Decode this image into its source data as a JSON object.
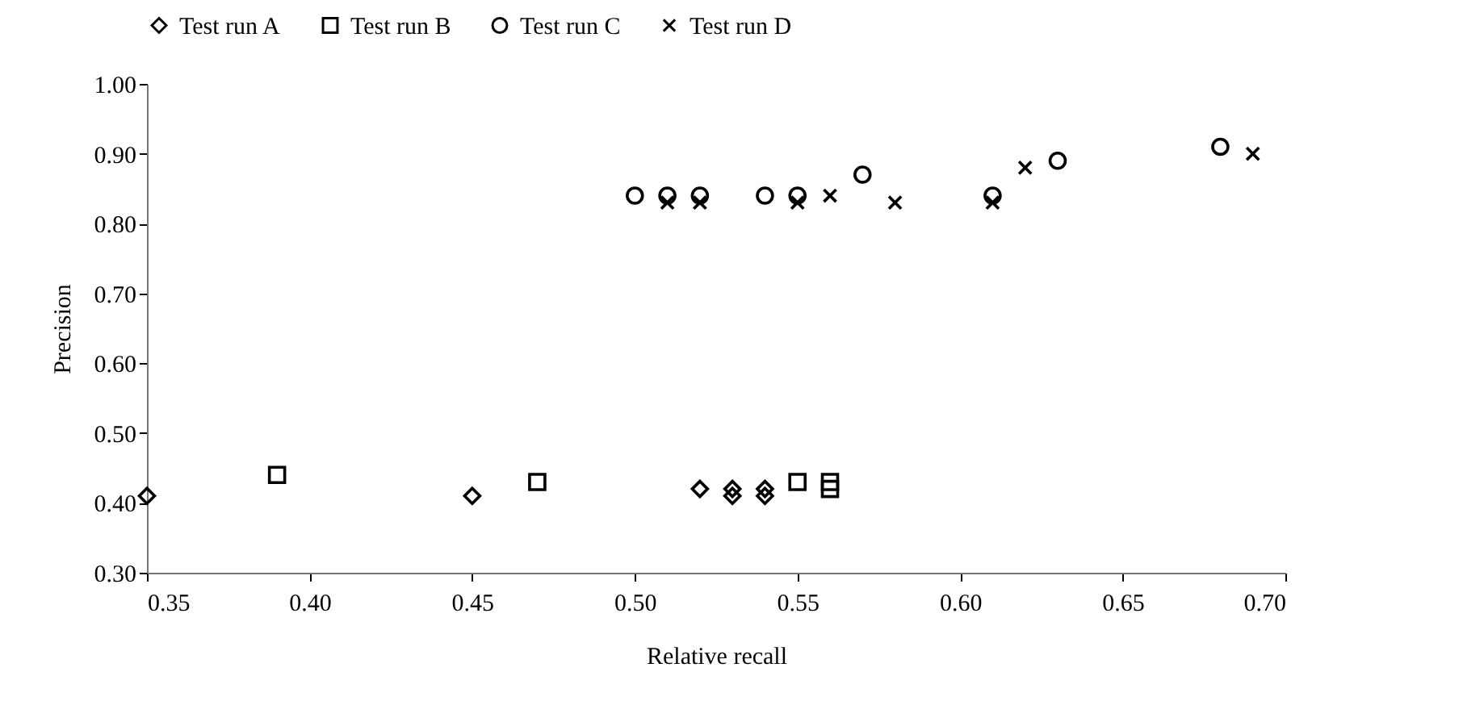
{
  "chart_data": {
    "type": "scatter",
    "xlabel": "Relative recall",
    "ylabel": "Precision",
    "xlim": [
      0.35,
      0.7
    ],
    "xticks": [
      {
        "value": 0.35,
        "label": "0.35"
      },
      {
        "value": 0.4,
        "label": "0.40"
      },
      {
        "value": 0.45,
        "label": "0.45"
      },
      {
        "value": 0.5,
        "label": "0.50"
      },
      {
        "value": 0.55,
        "label": "0.55"
      },
      {
        "value": 0.6,
        "label": "0.60"
      },
      {
        "value": 0.65,
        "label": "0.65"
      },
      {
        "value": 0.7,
        "label": "0.70"
      }
    ],
    "ylim": [
      0.3,
      1.0
    ],
    "yticks": [
      {
        "value": 0.3,
        "label": "0.30"
      },
      {
        "value": 0.4,
        "label": "0.40"
      },
      {
        "value": 0.5,
        "label": "0.50"
      },
      {
        "value": 0.6,
        "label": "0.60"
      },
      {
        "value": 0.7,
        "label": "0.70"
      },
      {
        "value": 0.8,
        "label": "0.80"
      },
      {
        "value": 0.9,
        "label": "0.90"
      },
      {
        "value": 1.0,
        "label": "1.00"
      }
    ],
    "grid": false,
    "legend": "top",
    "series": [
      {
        "name": "Test run A",
        "color": "#000000",
        "marker": "diamond",
        "x": [
          0.35,
          0.45,
          0.52,
          0.53,
          0.53,
          0.54,
          0.54
        ],
        "values": [
          0.41,
          0.41,
          0.42,
          0.42,
          0.41,
          0.42,
          0.41
        ]
      },
      {
        "name": "Test run B",
        "color": "#000000",
        "marker": "square",
        "x": [
          0.39,
          0.47,
          0.55,
          0.56,
          0.56
        ],
        "values": [
          0.44,
          0.43,
          0.43,
          0.43,
          0.42
        ]
      },
      {
        "name": "Test run C",
        "color": "#000000",
        "marker": "circle",
        "x": [
          0.5,
          0.51,
          0.52,
          0.54,
          0.55,
          0.57,
          0.61,
          0.63,
          0.68
        ],
        "values": [
          0.84,
          0.84,
          0.84,
          0.84,
          0.84,
          0.87,
          0.84,
          0.89,
          0.91
        ]
      },
      {
        "name": "Test run D",
        "color": "#000000",
        "marker": "cross",
        "x": [
          0.51,
          0.52,
          0.55,
          0.56,
          0.58,
          0.61,
          0.62,
          0.69
        ],
        "values": [
          0.83,
          0.83,
          0.83,
          0.84,
          0.83,
          0.83,
          0.88,
          0.9
        ]
      }
    ]
  }
}
